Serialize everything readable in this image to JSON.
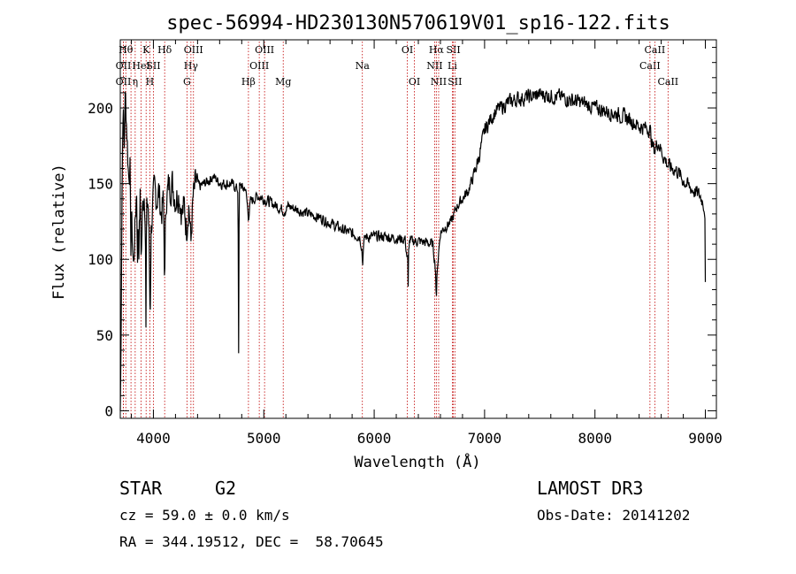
{
  "chart_data": {
    "type": "line",
    "title": "spec-56994-HD230130N570619V01_sp16-122.fits",
    "xlabel": "Wavelength (Å)",
    "ylabel": "Flux (relative)",
    "xlim": [
      3700,
      9100
    ],
    "ylim": [
      -5,
      245
    ],
    "xticks": [
      4000,
      5000,
      6000,
      7000,
      8000,
      9000
    ],
    "yticks": [
      0,
      50,
      100,
      150,
      200
    ],
    "anchors": [
      [
        3700,
        0
      ],
      [
        3705,
        30
      ],
      [
        3715,
        140
      ],
      [
        3725,
        205
      ],
      [
        3735,
        170
      ],
      [
        3745,
        210
      ],
      [
        3760,
        185
      ],
      [
        3775,
        155
      ],
      [
        3790,
        165
      ],
      [
        3805,
        120
      ],
      [
        3820,
        95
      ],
      [
        3835,
        125
      ],
      [
        3850,
        150
      ],
      [
        3868,
        110
      ],
      [
        3880,
        140
      ],
      [
        3890,
        100
      ],
      [
        3900,
        130
      ],
      [
        3915,
        145
      ],
      [
        3935,
        125
      ],
      [
        3950,
        140
      ],
      [
        3960,
        115
      ],
      [
        3970,
        60
      ],
      [
        3980,
        120
      ],
      [
        3995,
        135
      ],
      [
        4010,
        145
      ],
      [
        4030,
        140
      ],
      [
        4050,
        145
      ],
      [
        4070,
        130
      ],
      [
        4090,
        138
      ],
      [
        4102,
        100
      ],
      [
        4115,
        140
      ],
      [
        4140,
        148
      ],
      [
        4170,
        150
      ],
      [
        4200,
        140
      ],
      [
        4230,
        145
      ],
      [
        4260,
        130
      ],
      [
        4280,
        135
      ],
      [
        4300,
        120
      ],
      [
        4320,
        138
      ],
      [
        4340,
        115
      ],
      [
        4360,
        140
      ],
      [
        4385,
        150
      ],
      [
        4420,
        148
      ],
      [
        4460,
        150
      ],
      [
        4500,
        152
      ],
      [
        4540,
        155
      ],
      [
        4580,
        152
      ],
      [
        4620,
        150
      ],
      [
        4660,
        150
      ],
      [
        4700,
        150
      ],
      [
        4740,
        148
      ],
      [
        4770,
        145
      ],
      [
        4790,
        150
      ],
      [
        4810,
        146
      ],
      [
        4830,
        148
      ],
      [
        4845,
        140
      ],
      [
        4861,
        128
      ],
      [
        4880,
        138
      ],
      [
        4910,
        140
      ],
      [
        4950,
        142
      ],
      [
        5000,
        140
      ],
      [
        5050,
        138
      ],
      [
        5100,
        136
      ],
      [
        5150,
        134
      ],
      [
        5183,
        132
      ],
      [
        5220,
        135
      ],
      [
        5300,
        133
      ],
      [
        5400,
        130
      ],
      [
        5500,
        128
      ],
      [
        5600,
        124
      ],
      [
        5700,
        120
      ],
      [
        5800,
        117
      ],
      [
        5870,
        115
      ],
      [
        5893,
        106
      ],
      [
        5920,
        115
      ],
      [
        6000,
        115
      ],
      [
        6100,
        115
      ],
      [
        6200,
        114
      ],
      [
        6280,
        113
      ],
      [
        6300,
        100
      ],
      [
        6320,
        112
      ],
      [
        6400,
        112
      ],
      [
        6480,
        111
      ],
      [
        6530,
        110
      ],
      [
        6555,
        95
      ],
      [
        6563,
        76
      ],
      [
        6572,
        95
      ],
      [
        6600,
        118
      ],
      [
        6650,
        122
      ],
      [
        6700,
        125
      ],
      [
        6750,
        135
      ],
      [
        6800,
        140
      ],
      [
        6850,
        145
      ],
      [
        6900,
        155
      ],
      [
        6950,
        168
      ],
      [
        7000,
        185
      ],
      [
        7050,
        192
      ],
      [
        7100,
        198
      ],
      [
        7150,
        200
      ],
      [
        7200,
        203
      ],
      [
        7300,
        206
      ],
      [
        7400,
        207
      ],
      [
        7500,
        209
      ],
      [
        7600,
        208
      ],
      [
        7700,
        207
      ],
      [
        7800,
        205
      ],
      [
        7900,
        203
      ],
      [
        8000,
        200
      ],
      [
        8100,
        198
      ],
      [
        8200,
        196
      ],
      [
        8300,
        193
      ],
      [
        8400,
        188
      ],
      [
        8498,
        186
      ],
      [
        8520,
        175
      ],
      [
        8542,
        172
      ],
      [
        8570,
        178
      ],
      [
        8620,
        168
      ],
      [
        8662,
        162
      ],
      [
        8700,
        160
      ],
      [
        8750,
        158
      ],
      [
        8800,
        152
      ],
      [
        8850,
        148
      ],
      [
        8900,
        145
      ],
      [
        8950,
        142
      ],
      [
        8980,
        138
      ],
      [
        9000,
        130
      ]
    ],
    "dips": [
      [
        4772,
        38,
        8
      ],
      [
        3932,
        55,
        8
      ],
      [
        3855,
        85,
        8
      ],
      [
        3795,
        90,
        8
      ],
      [
        4102,
        82,
        8
      ],
      [
        6563,
        74,
        6
      ],
      [
        6308,
        82,
        6
      ],
      [
        5895,
        93,
        8
      ],
      [
        4340,
        112,
        8
      ]
    ],
    "lines": [
      {
        "w": 3750,
        "label": "Hθ",
        "row": 0
      },
      {
        "w": 3728,
        "label": "OII",
        "row": 1
      },
      {
        "w": 3728,
        "label": "OII",
        "row": 2
      },
      {
        "w": 3797,
        "label": "",
        "row": -1
      },
      {
        "w": 3835,
        "label": "η",
        "row": 2
      },
      {
        "w": 3889,
        "label": "HeI",
        "row": 1
      },
      {
        "w": 3934,
        "label": "K",
        "row": 0
      },
      {
        "w": 3968,
        "label": "H",
        "row": 2
      },
      {
        "w": 4000,
        "label": "SII",
        "row": 1
      },
      {
        "w": 4102,
        "label": "Hδ",
        "row": 0
      },
      {
        "w": 4304,
        "label": "G",
        "row": 2
      },
      {
        "w": 4340,
        "label": "Hγ",
        "row": 1
      },
      {
        "w": 4363,
        "label": "OIII",
        "row": 0
      },
      {
        "w": 4861,
        "label": "Hβ",
        "row": 2
      },
      {
        "w": 4959,
        "label": "OIII",
        "row": 1
      },
      {
        "w": 5007,
        "label": "OIII",
        "row": 0
      },
      {
        "w": 5176,
        "label": "Mg",
        "row": 2
      },
      {
        "w": 5893,
        "label": "Na",
        "row": 1
      },
      {
        "w": 6300,
        "label": "OI",
        "row": 0
      },
      {
        "w": 6364,
        "label": "OI",
        "row": 2
      },
      {
        "w": 6548,
        "label": "NII",
        "row": 1
      },
      {
        "w": 6563,
        "label": "Hα",
        "row": 0
      },
      {
        "w": 6584,
        "label": "NII",
        "row": 2
      },
      {
        "w": 6708,
        "label": "Li",
        "row": 1
      },
      {
        "w": 6717,
        "label": "SII",
        "row": 0
      },
      {
        "w": 6731,
        "label": "SII",
        "row": 2
      },
      {
        "w": 8498,
        "label": "CaII",
        "row": 1
      },
      {
        "w": 8542,
        "label": "CaII",
        "row": 0
      },
      {
        "w": 8662,
        "label": "CaII",
        "row": 2
      }
    ]
  },
  "info": {
    "class": "STAR",
    "subclass": "G2",
    "survey": "LAMOST DR3",
    "cz": "cz = 59.0 ± 0.0 km/s",
    "obs_date": "Obs-Date: 20141202",
    "radec": "RA = 344.19512, DEC =  58.70645"
  }
}
